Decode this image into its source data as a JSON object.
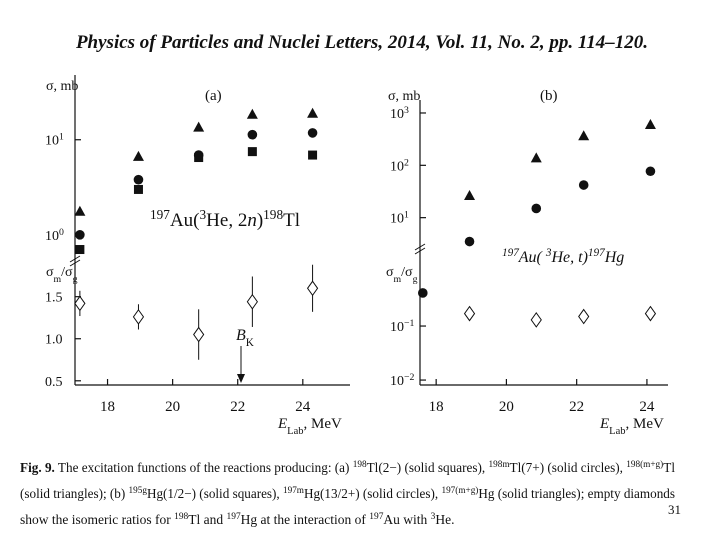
{
  "header": {
    "title": "Physics of Particles and Nuclei Letters, 2014, Vol. 11, No. 2, pp. 114–120."
  },
  "chart_data": [
    {
      "type": "scatter",
      "panel_label": "(a)",
      "y_label": "σ, mb",
      "annotation": [
        {
          "text": "197",
          "style": "sup"
        },
        "Au(",
        {
          "text": "3",
          "style": "sup"
        },
        "He, 2",
        {
          "text": "n",
          "style": "italic"
        },
        ")",
        {
          "text": "198",
          "style": "sup"
        },
        "Tl"
      ],
      "log_y": true,
      "xlim": [
        17,
        25.45
      ],
      "ylim": [
        0.57,
        48
      ],
      "yticks": [
        {
          "value": 1,
          "label": "10",
          "exponent": "0"
        },
        {
          "value": 10,
          "label": "10",
          "exponent": "1"
        }
      ],
      "series": [
        {
          "marker": "triangle",
          "color": "#111111",
          "x": [
            17.15,
            18.95,
            20.8,
            22.45,
            24.3
          ],
          "values": [
            1.75,
            6.6,
            13.4,
            18.3,
            18.8
          ]
        },
        {
          "marker": "circle",
          "color": "#111111",
          "x": [
            17.15,
            18.95,
            20.8,
            22.45,
            24.3
          ],
          "values": [
            1.0,
            3.8,
            6.9,
            11.3,
            11.8
          ]
        },
        {
          "marker": "square",
          "color": "#111111",
          "x": [
            17.15,
            18.95,
            20.8,
            22.45,
            24.3
          ],
          "values": [
            0.7,
            3.0,
            6.5,
            7.5,
            6.9
          ]
        }
      ]
    },
    {
      "type": "scatter",
      "y_label": [
        "σ",
        {
          "text": "m",
          "style": "sub"
        },
        "/σ",
        {
          "text": "g",
          "style": "sub"
        }
      ],
      "annotation": [
        {
          "text": "B",
          "style": "italic"
        },
        {
          "text": "K",
          "style": "sub"
        }
      ],
      "x_label": [
        {
          "text": "E",
          "style": "italic"
        },
        {
          "text": "Lab",
          "style": "sub"
        },
        ", MeV"
      ],
      "log_y": false,
      "xlim": [
        17,
        25.45
      ],
      "ylim": [
        0.45,
        1.96
      ],
      "xticks": [
        18,
        20,
        22,
        24
      ],
      "yticks": [
        0.5,
        {
          "value": 1,
          "label": "1.0"
        },
        1.5
      ],
      "series": [
        {
          "marker": "diamond",
          "color": "#111111",
          "x": [
            17.15,
            18.95,
            20.8,
            22.45,
            24.3
          ],
          "values": [
            1.42,
            1.26,
            1.05,
            1.44,
            1.6
          ],
          "errors": [
            0.15,
            0.15,
            0.3,
            0.3,
            0.28
          ]
        }
      ]
    },
    {
      "type": "scatter",
      "panel_label": "(b)",
      "y_label": "σ, mb",
      "annotation": [
        {
          "text": "197",
          "style": "sup"
        },
        "Au( ",
        {
          "text": "3",
          "style": "sup"
        },
        "He, t)",
        {
          "text": "197",
          "style": "sup"
        },
        "Hg"
      ],
      "log_y": true,
      "xlim": [
        17.54,
        24.6
      ],
      "ylim": [
        1,
        1770
      ],
      "yticks": [
        {
          "value": 10,
          "label": "10",
          "exponent": "1"
        },
        {
          "value": 100,
          "label": "10",
          "exponent": "2"
        },
        {
          "value": 1000,
          "label": "10",
          "exponent": "3"
        }
      ],
      "series": [
        {
          "marker": "triangle",
          "color": "#111111",
          "x": [
            18.95,
            20.85,
            22.2,
            24.1
          ],
          "values": [
            26,
            136,
            360,
            590
          ]
        },
        {
          "marker": "circle",
          "color": "#111111",
          "x": [
            18.95,
            20.85,
            22.2,
            24.1
          ],
          "values": [
            3.5,
            15,
            42,
            77
          ]
        }
      ]
    },
    {
      "type": "scatter",
      "y_label": [
        "σ",
        {
          "text": "m",
          "style": "sub"
        },
        "/σ",
        {
          "text": "g",
          "style": "sub"
        }
      ],
      "x_label": [
        {
          "text": "E",
          "style": "italic"
        },
        {
          "text": "Lab",
          "style": "sub"
        },
        ", MeV"
      ],
      "log_y": true,
      "xlim": [
        17.54,
        24.6
      ],
      "ylim": [
        0.0081,
        1.09
      ],
      "xticks": [
        18,
        20,
        22,
        24
      ],
      "yticks": [
        {
          "value": 0.01,
          "label": "10",
          "exponent": "−2"
        },
        {
          "value": 0.1,
          "label": "10",
          "exponent": "−1"
        }
      ],
      "series": [
        {
          "marker": "circle",
          "color": "#111111",
          "x": [
            17.62
          ],
          "values": [
            0.41
          ]
        },
        {
          "marker": "diamond",
          "color": "#111111",
          "x": [
            18.95,
            20.85,
            22.2,
            24.1
          ],
          "values": [
            0.17,
            0.13,
            0.15,
            0.17
          ],
          "errors": [
            0.03,
            0.02,
            0.02,
            0.02
          ]
        }
      ]
    }
  ],
  "caption": {
    "lines": [
      [
        {
          "text": "Fig. 9.",
          "style": "bold"
        },
        " The excitation functions of the reactions producing: (a) ",
        {
          "text": "198",
          "style": "sup"
        },
        "Tl(2−) (solid squares), ",
        {
          "text": "198m",
          "style": "sup"
        },
        "Tl(7+) (solid circles), ",
        {
          "text": "198(m+g)",
          "style": "sup"
        },
        "Tl"
      ],
      [
        "(solid triangles); (b) ",
        {
          "text": "195g",
          "style": "sup"
        },
        "Hg(1/2−) (solid squares), ",
        {
          "text": "197m",
          "style": "sup"
        },
        "Hg(13/2+) (solid circles), ",
        {
          "text": "197(m+g)",
          "style": "sup"
        },
        "Hg (solid triangles); empty diamonds"
      ],
      [
        "show the isomeric ratios for ",
        {
          "text": "198",
          "style": "sup"
        },
        "Tl and ",
        {
          "text": "197",
          "style": "sup"
        },
        "Hg at the interaction of ",
        {
          "text": "197",
          "style": "sup"
        },
        "Au with ",
        {
          "text": "3",
          "style": "sup"
        },
        "He."
      ]
    ]
  },
  "page_number": "31"
}
